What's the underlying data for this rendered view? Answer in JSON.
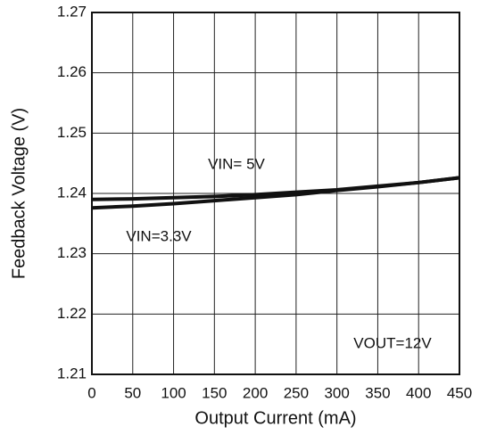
{
  "chart_data": {
    "type": "line",
    "x_label": "Output Current (mA)",
    "y_label": "Feedback Voltage (V)",
    "x": [
      0,
      50,
      100,
      150,
      200,
      250,
      300,
      350,
      400,
      450
    ],
    "series": [
      {
        "name": "VIN= 5V",
        "color": "#111111",
        "values": [
          1.239,
          1.2391,
          1.2393,
          1.2395,
          1.2398,
          1.2402,
          1.2406,
          1.2412,
          1.2418,
          1.2426
        ]
      },
      {
        "name": "VIN=3.3V",
        "color": "#111111",
        "values": [
          1.2376,
          1.2379,
          1.2383,
          1.2388,
          1.2393,
          1.2398,
          1.2405,
          1.2411,
          1.2418,
          1.2426
        ]
      }
    ],
    "annotations": [
      "VOUT=12V"
    ],
    "xlim": [
      0,
      450
    ],
    "xticks": [
      0,
      50,
      100,
      150,
      200,
      250,
      300,
      350,
      400,
      450
    ],
    "ylim": [
      1.21,
      1.27
    ],
    "yticks": [
      1.21,
      1.22,
      1.23,
      1.24,
      1.25,
      1.26,
      1.27
    ],
    "grid": true
  }
}
